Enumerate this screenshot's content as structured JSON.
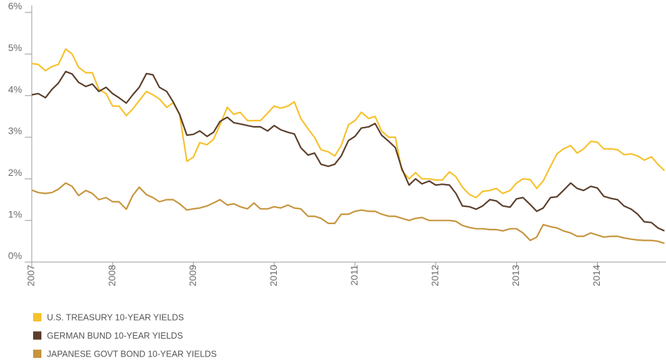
{
  "chart_data": {
    "type": "line",
    "x": [
      2007,
      2007.08,
      2007.17,
      2007.25,
      2007.33,
      2007.42,
      2007.5,
      2007.58,
      2007.67,
      2007.75,
      2007.83,
      2007.92,
      2008,
      2008.08,
      2008.17,
      2008.25,
      2008.33,
      2008.42,
      2008.5,
      2008.58,
      2008.67,
      2008.75,
      2008.83,
      2008.92,
      2009,
      2009.08,
      2009.17,
      2009.25,
      2009.33,
      2009.42,
      2009.5,
      2009.58,
      2009.67,
      2009.75,
      2009.83,
      2009.92,
      2010,
      2010.08,
      2010.17,
      2010.25,
      2010.33,
      2010.42,
      2010.5,
      2010.58,
      2010.67,
      2010.75,
      2010.83,
      2010.92,
      2011,
      2011.08,
      2011.17,
      2011.25,
      2011.33,
      2011.42,
      2011.5,
      2011.58,
      2011.67,
      2011.75,
      2011.83,
      2011.92,
      2012,
      2012.08,
      2012.17,
      2012.25,
      2012.33,
      2012.42,
      2012.5,
      2012.58,
      2012.67,
      2012.75,
      2012.83,
      2012.92,
      2013,
      2013.08,
      2013.17,
      2013.25,
      2013.33,
      2013.42,
      2013.5,
      2013.58,
      2013.67,
      2013.75,
      2013.83,
      2013.92,
      2014,
      2014.08,
      2014.17,
      2014.25,
      2014.33,
      2014.42,
      2014.5,
      2014.58,
      2014.67,
      2014.75,
      2014.83
    ],
    "series": [
      {
        "name": "U.S. TREASURY 10-YEAR YIELDS",
        "color": "#f7c12d",
        "values": [
          4.77,
          4.75,
          4.6,
          4.7,
          4.75,
          5.12,
          5.0,
          4.68,
          4.55,
          4.55,
          4.15,
          4.05,
          3.75,
          3.75,
          3.52,
          3.68,
          3.88,
          4.1,
          4.02,
          3.92,
          3.72,
          3.83,
          3.55,
          2.42,
          2.52,
          2.87,
          2.82,
          2.95,
          3.3,
          3.72,
          3.55,
          3.6,
          3.4,
          3.4,
          3.4,
          3.58,
          3.75,
          3.7,
          3.75,
          3.85,
          3.45,
          3.2,
          3.0,
          2.7,
          2.65,
          2.55,
          2.8,
          3.3,
          3.4,
          3.6,
          3.45,
          3.5,
          3.15,
          3.0,
          3.0,
          2.2,
          2.0,
          2.15,
          2.0,
          2.0,
          1.97,
          1.97,
          2.17,
          2.05,
          1.8,
          1.62,
          1.55,
          1.7,
          1.72,
          1.77,
          1.65,
          1.72,
          1.9,
          2.0,
          1.98,
          1.77,
          1.95,
          2.3,
          2.6,
          2.72,
          2.8,
          2.62,
          2.72,
          2.9,
          2.88,
          2.72,
          2.72,
          2.7,
          2.58,
          2.6,
          2.55,
          2.45,
          2.53,
          2.35,
          2.2
        ]
      },
      {
        "name": "GERMAN BUND 10-YEAR YIELDS",
        "color": "#5b3f2b",
        "values": [
          4.02,
          4.05,
          3.95,
          4.15,
          4.3,
          4.58,
          4.52,
          4.32,
          4.22,
          4.28,
          4.1,
          4.2,
          4.05,
          3.95,
          3.82,
          4.02,
          4.2,
          4.53,
          4.5,
          4.2,
          4.1,
          3.85,
          3.55,
          3.05,
          3.07,
          3.15,
          3.02,
          3.12,
          3.38,
          3.48,
          3.35,
          3.32,
          3.28,
          3.25,
          3.25,
          3.15,
          3.28,
          3.18,
          3.12,
          3.08,
          2.75,
          2.57,
          2.62,
          2.35,
          2.3,
          2.35,
          2.55,
          2.92,
          3.02,
          3.22,
          3.25,
          3.33,
          3.05,
          2.9,
          2.75,
          2.25,
          1.85,
          2.0,
          1.88,
          1.95,
          1.85,
          1.87,
          1.85,
          1.65,
          1.35,
          1.33,
          1.27,
          1.35,
          1.5,
          1.47,
          1.35,
          1.32,
          1.52,
          1.55,
          1.38,
          1.22,
          1.3,
          1.55,
          1.57,
          1.72,
          1.9,
          1.77,
          1.72,
          1.82,
          1.78,
          1.58,
          1.53,
          1.5,
          1.35,
          1.27,
          1.15,
          0.97,
          0.95,
          0.82,
          0.75
        ]
      },
      {
        "name": "JAPANESE GOVT BOND 10-YEAR YIELDS",
        "color": "#c6953e",
        "values": [
          1.73,
          1.67,
          1.65,
          1.67,
          1.75,
          1.9,
          1.82,
          1.6,
          1.72,
          1.65,
          1.5,
          1.55,
          1.45,
          1.45,
          1.27,
          1.6,
          1.8,
          1.62,
          1.55,
          1.45,
          1.5,
          1.5,
          1.4,
          1.25,
          1.28,
          1.3,
          1.35,
          1.42,
          1.5,
          1.37,
          1.4,
          1.33,
          1.28,
          1.42,
          1.28,
          1.28,
          1.33,
          1.3,
          1.37,
          1.3,
          1.28,
          1.1,
          1.1,
          1.05,
          0.93,
          0.93,
          1.15,
          1.15,
          1.22,
          1.25,
          1.22,
          1.22,
          1.15,
          1.1,
          1.1,
          1.05,
          1.0,
          1.05,
          1.07,
          1.0,
          1.0,
          1.0,
          1.0,
          0.98,
          0.88,
          0.83,
          0.8,
          0.8,
          0.78,
          0.78,
          0.75,
          0.8,
          0.8,
          0.7,
          0.52,
          0.6,
          0.9,
          0.85,
          0.82,
          0.75,
          0.7,
          0.62,
          0.62,
          0.7,
          0.65,
          0.6,
          0.62,
          0.62,
          0.58,
          0.55,
          0.53,
          0.52,
          0.52,
          0.5,
          0.45
        ]
      }
    ],
    "xlim": [
      2007,
      2014.85
    ],
    "xticks": [
      2007,
      2008,
      2009,
      2010,
      2011,
      2012,
      2013,
      2014
    ],
    "ylim": [
      0,
      6
    ],
    "yticks": [
      {
        "value": 0,
        "label": "0%"
      },
      {
        "value": 1,
        "label": "1%"
      },
      {
        "value": 2,
        "label": "2%"
      },
      {
        "value": 3,
        "label": "3%"
      },
      {
        "value": 4,
        "label": "4%"
      },
      {
        "value": 5,
        "label": "5%"
      },
      {
        "value": 6,
        "label": "6%"
      }
    ],
    "grid": false,
    "legend": "bottom-left"
  }
}
